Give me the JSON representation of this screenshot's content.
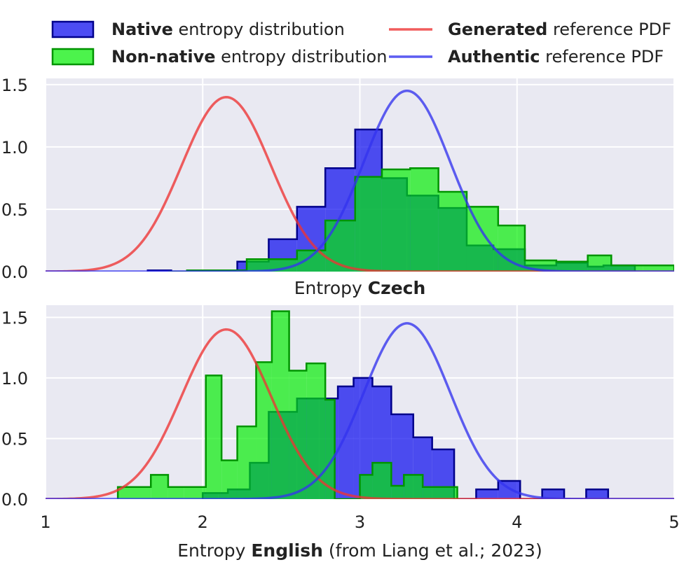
{
  "chart_data": {
    "type": "histogram_with_pdf",
    "legend": {
      "placement": "top",
      "entries": [
        {
          "id": "native",
          "kind": "patch",
          "bold": "Native",
          "rest": " entropy distribution",
          "face": "#0000ee",
          "edge": "#00008b"
        },
        {
          "id": "nonnative",
          "kind": "patch",
          "bold": "Non-native",
          "rest": " entropy distribution",
          "face": "#00ee00",
          "edge": "#009400"
        },
        {
          "id": "generated",
          "kind": "line",
          "bold": "Generated",
          "rest": " reference PDF",
          "color": "#ee3333"
        },
        {
          "id": "authentic",
          "kind": "line",
          "bold": "Authentic",
          "rest": " reference PDF",
          "color": "#3333ee"
        }
      ]
    },
    "colors": {
      "plot_bg": "#e9e9f2",
      "grid": "#ffffff",
      "native_face": "#0000ee",
      "native_edge": "#00008b",
      "nonnative_face": "#00ee00",
      "nonnative_edge": "#009400",
      "generated": "#ee3333",
      "authentic": "#3333ee"
    },
    "xlim": [
      1,
      5
    ],
    "xticks": [
      "1",
      "2",
      "3",
      "4",
      "5"
    ],
    "reference_pdfs": {
      "generated": {
        "mean": 2.15,
        "std": 0.285
      },
      "authentic": {
        "mean": 3.3,
        "std": 0.275
      }
    },
    "panels": [
      {
        "id": "czech",
        "xlabel_prefix": "Entropy ",
        "xlabel_bold": "Czech",
        "xlabel_suffix": "",
        "ylim": [
          0,
          1.55
        ],
        "yticks": [
          "0.0",
          "0.5",
          "1.0",
          "1.5"
        ],
        "native": {
          "edges": [
            1.65,
            1.8,
            2.0,
            2.1,
            2.22,
            2.28,
            2.42,
            2.6,
            2.78,
            2.97,
            3.14,
            3.3,
            3.5,
            3.68,
            3.85,
            4.05,
            4.25,
            4.45,
            4.55,
            4.75
          ],
          "values": [
            0.01,
            0.0,
            0.0,
            0.0,
            0.08,
            0.08,
            0.26,
            0.52,
            0.83,
            1.14,
            0.75,
            0.61,
            0.51,
            0.21,
            0.18,
            0.05,
            0.07,
            0.04,
            0.05
          ]
        },
        "nonnative": {
          "edges": [
            1.78,
            1.9,
            2.08,
            2.2,
            2.28,
            2.42,
            2.6,
            2.78,
            2.97,
            3.14,
            3.32,
            3.5,
            3.68,
            3.88,
            4.05,
            4.25,
            4.45,
            4.6,
            4.8,
            5.0
          ],
          "values": [
            0.0,
            0.01,
            0.01,
            0.01,
            0.1,
            0.1,
            0.17,
            0.41,
            0.76,
            0.82,
            0.83,
            0.64,
            0.52,
            0.37,
            0.09,
            0.08,
            0.13,
            0.05,
            0.05
          ]
        }
      },
      {
        "id": "english",
        "xlabel_prefix": "Entropy ",
        "xlabel_bold": "English",
        "xlabel_suffix": " (from Liang et al.; 2023)",
        "ylim": [
          0,
          1.6
        ],
        "yticks": [
          "0.0",
          "0.5",
          "1.0",
          "1.5"
        ],
        "native": {
          "edges": [
            2.0,
            2.1,
            2.16,
            2.3,
            2.42,
            2.6,
            2.74,
            2.86,
            2.96,
            3.08,
            3.2,
            3.34,
            3.46,
            3.6,
            3.74,
            3.88,
            4.02,
            4.16,
            4.3,
            4.44,
            4.58
          ],
          "values": [
            0.05,
            0.05,
            0.08,
            0.3,
            0.72,
            0.83,
            0.83,
            0.93,
            1.0,
            0.93,
            0.7,
            0.51,
            0.41,
            0.0,
            0.08,
            0.15,
            0.0,
            0.08,
            0.0,
            0.08
          ]
        },
        "nonnative": {
          "edges": [
            1.46,
            1.67,
            1.78,
            1.88,
            2.02,
            2.12,
            2.22,
            2.34,
            2.44,
            2.55,
            2.66,
            2.78,
            2.84,
            3.0,
            3.08,
            3.2,
            3.28,
            3.4,
            3.62
          ],
          "values": [
            0.1,
            0.2,
            0.1,
            0.1,
            1.02,
            0.32,
            0.6,
            1.13,
            1.55,
            1.06,
            1.12,
            0.82,
            0.0,
            0.2,
            0.3,
            0.11,
            0.2,
            0.1
          ]
        }
      }
    ]
  }
}
